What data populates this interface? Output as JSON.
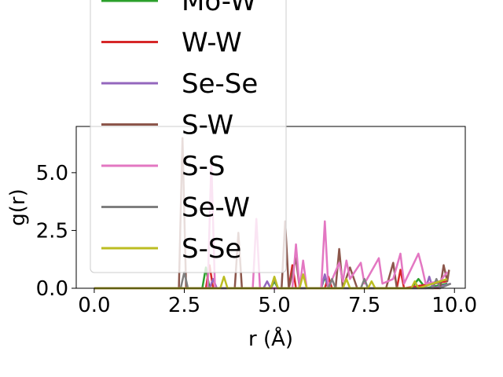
{
  "chart_data": {
    "type": "line",
    "xlabel": "r (Å)",
    "ylabel": "g(r)",
    "xlim": [
      -0.5,
      10.3
    ],
    "ylim": [
      0,
      7.0
    ],
    "x_ticks": [
      "0.0",
      "2.5",
      "5.0",
      "7.5",
      "10.0"
    ],
    "y_ticks": [
      "0.0",
      "2.5",
      "5.0"
    ],
    "grid": false,
    "legend_position": "upper-left",
    "legend_entries": [
      "Mo-W",
      "W-W",
      "Se-Se",
      "S-W",
      "S-S",
      "Se-W",
      "S-Se"
    ],
    "series": [
      {
        "name": "Mo-W",
        "color": "#2ca02c",
        "points": [
          [
            0,
            0
          ],
          [
            3.0,
            0
          ],
          [
            3.1,
            0.9
          ],
          [
            3.2,
            0
          ],
          [
            4.9,
            0
          ],
          [
            5.0,
            0.3
          ],
          [
            5.1,
            0
          ],
          [
            6.3,
            0
          ],
          [
            6.4,
            0.5
          ],
          [
            6.5,
            0
          ],
          [
            8.8,
            0
          ],
          [
            9.0,
            0.4
          ],
          [
            9.2,
            0
          ],
          [
            9.8,
            0.2
          ]
        ]
      },
      {
        "name": "W-W",
        "color": "#d62728",
        "points": [
          [
            0,
            0
          ],
          [
            3.1,
            0
          ],
          [
            3.2,
            1.0
          ],
          [
            3.3,
            0
          ],
          [
            5.4,
            0
          ],
          [
            5.5,
            1.0
          ],
          [
            5.6,
            0
          ],
          [
            6.4,
            0
          ],
          [
            6.5,
            0.5
          ],
          [
            6.6,
            0
          ],
          [
            8.4,
            0
          ],
          [
            8.5,
            0.8
          ],
          [
            8.6,
            0
          ],
          [
            9.8,
            0.3
          ]
        ]
      },
      {
        "name": "Se-Se",
        "color": "#9467bd",
        "points": [
          [
            0,
            0
          ],
          [
            3.2,
            0
          ],
          [
            3.3,
            0.4
          ],
          [
            3.4,
            0
          ],
          [
            4.7,
            0
          ],
          [
            4.8,
            0.3
          ],
          [
            4.9,
            0
          ],
          [
            6.3,
            0
          ],
          [
            6.4,
            0.6
          ],
          [
            6.5,
            0
          ],
          [
            9.2,
            0
          ],
          [
            9.3,
            0.5
          ],
          [
            9.4,
            0
          ],
          [
            9.9,
            0.2
          ]
        ]
      },
      {
        "name": "S-W",
        "color": "#8c564b",
        "points": [
          [
            0,
            0
          ],
          [
            2.35,
            0
          ],
          [
            2.45,
            6.5
          ],
          [
            2.55,
            0
          ],
          [
            3.9,
            0
          ],
          [
            4.0,
            2.4
          ],
          [
            4.1,
            0
          ],
          [
            5.2,
            0
          ],
          [
            5.3,
            2.9
          ],
          [
            5.4,
            0
          ],
          [
            5.6,
            1.3
          ],
          [
            5.7,
            0
          ],
          [
            6.7,
            0
          ],
          [
            6.8,
            1.7
          ],
          [
            6.9,
            0
          ],
          [
            7.1,
            0.9
          ],
          [
            7.3,
            0
          ],
          [
            8.1,
            0
          ],
          [
            8.3,
            1.1
          ],
          [
            8.4,
            0
          ],
          [
            9.6,
            0
          ],
          [
            9.7,
            1.0
          ],
          [
            9.8,
            0.3
          ],
          [
            9.85,
            0.8
          ]
        ]
      },
      {
        "name": "S-S",
        "color": "#e377c2",
        "points": [
          [
            0,
            0
          ],
          [
            3.15,
            0
          ],
          [
            3.25,
            5.5
          ],
          [
            3.35,
            0
          ],
          [
            4.4,
            0
          ],
          [
            4.5,
            3.0
          ],
          [
            4.6,
            0
          ],
          [
            5.5,
            0
          ],
          [
            5.6,
            1.9
          ],
          [
            5.7,
            0
          ],
          [
            5.8,
            1.2
          ],
          [
            5.9,
            0
          ],
          [
            6.3,
            0
          ],
          [
            6.4,
            2.9
          ],
          [
            6.5,
            0
          ],
          [
            6.8,
            1.1
          ],
          [
            6.9,
            0.3
          ],
          [
            7.0,
            1.2
          ],
          [
            7.1,
            0.4
          ],
          [
            7.4,
            1.1
          ],
          [
            7.5,
            0.2
          ],
          [
            7.9,
            1.3
          ],
          [
            8.0,
            0.2
          ],
          [
            8.3,
            0.4
          ],
          [
            8.5,
            1.5
          ],
          [
            8.6,
            0.2
          ],
          [
            9.0,
            1.5
          ],
          [
            9.1,
            0.9
          ],
          [
            9.2,
            0.2
          ],
          [
            9.6,
            0.3
          ],
          [
            9.8,
            0.7
          ]
        ]
      },
      {
        "name": "Se-W",
        "color": "#7f7f7f",
        "points": [
          [
            0,
            0
          ],
          [
            2.4,
            0
          ],
          [
            2.5,
            0.7
          ],
          [
            2.6,
            0
          ],
          [
            4.9,
            0
          ],
          [
            5.0,
            0.4
          ],
          [
            5.1,
            0
          ],
          [
            6.5,
            0
          ],
          [
            6.6,
            0.4
          ],
          [
            6.7,
            0
          ],
          [
            7.4,
            0
          ],
          [
            7.5,
            0.4
          ],
          [
            7.6,
            0
          ],
          [
            9.4,
            0
          ],
          [
            9.5,
            0.4
          ],
          [
            9.6,
            0
          ],
          [
            9.9,
            0.2
          ]
        ]
      },
      {
        "name": "S-Se",
        "color": "#bcbd22",
        "points": [
          [
            0,
            0
          ],
          [
            3.5,
            0
          ],
          [
            3.6,
            0.5
          ],
          [
            3.7,
            0
          ],
          [
            4.9,
            0
          ],
          [
            5.0,
            0.5
          ],
          [
            5.1,
            0
          ],
          [
            5.7,
            0
          ],
          [
            5.8,
            0.6
          ],
          [
            5.9,
            0
          ],
          [
            6.9,
            0
          ],
          [
            7.0,
            0.4
          ],
          [
            7.1,
            0
          ],
          [
            7.6,
            0
          ],
          [
            7.7,
            0.3
          ],
          [
            7.8,
            0
          ],
          [
            8.8,
            0
          ],
          [
            8.9,
            0.3
          ],
          [
            9.0,
            0
          ],
          [
            9.8,
            0.4
          ]
        ]
      }
    ]
  }
}
